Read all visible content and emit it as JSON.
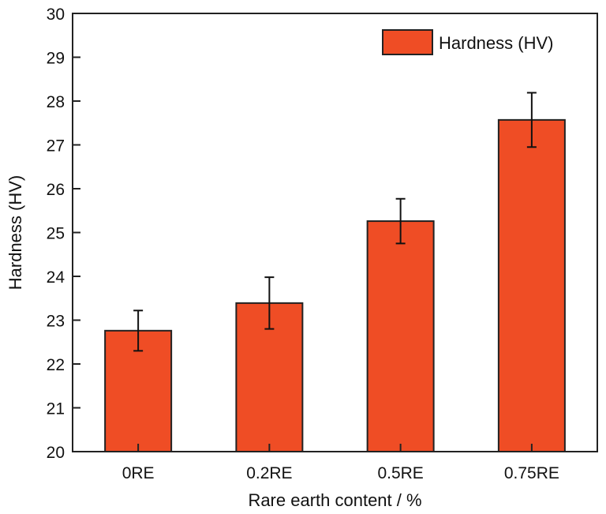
{
  "chart_data": {
    "type": "bar",
    "title": "",
    "xlabel": "Rare earth content / %",
    "ylabel": "Hardness (HV)",
    "categories": [
      "0RE",
      "0.2RE",
      "0.5RE",
      "0.75RE"
    ],
    "series": [
      {
        "name": "Hardness (HV)",
        "values": [
          22.76,
          23.39,
          25.26,
          27.57
        ],
        "errors": [
          0.46,
          0.59,
          0.51,
          0.62
        ],
        "color": "#EF4D25"
      }
    ],
    "ylim": [
      20,
      30
    ],
    "yticks": [
      20,
      21,
      22,
      23,
      24,
      25,
      26,
      27,
      28,
      29,
      30
    ],
    "grid": false,
    "legend_position": "top-right",
    "legend_entries": [
      "Hardness (HV)"
    ]
  }
}
